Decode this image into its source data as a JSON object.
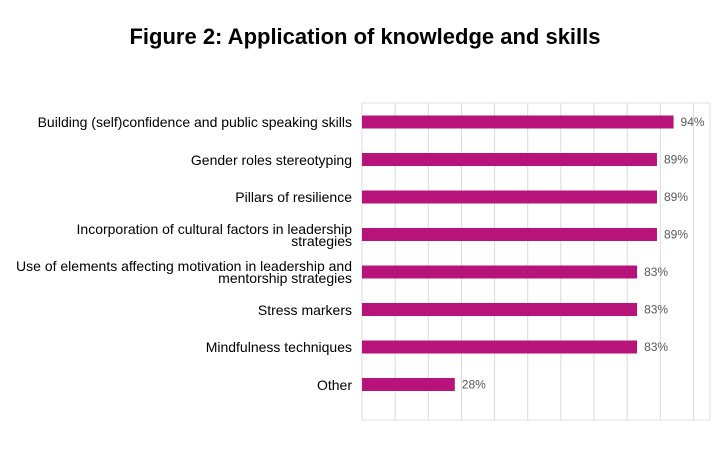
{
  "chart_data": {
    "type": "bar",
    "orientation": "horizontal",
    "title": "Figure 2: Application of knowledge and skills",
    "categories": [
      "Building (self)confidence and public speaking skills",
      "Gender roles stereotyping",
      "Pillars of resilience",
      "Incorporation of cultural factors in leadership strategies",
      "Use of elements affecting motivation in leadership and mentorship strategies",
      "Stress markers",
      "Mindfulness techniques",
      "Other"
    ],
    "values": [
      94,
      89,
      89,
      89,
      83,
      83,
      83,
      28
    ],
    "value_labels": [
      "94%",
      "89%",
      "89%",
      "89%",
      "83%",
      "83%",
      "83%",
      "28%"
    ],
    "color": "#b8137a",
    "xlim": [
      0,
      105
    ],
    "xticks": [
      0,
      10,
      20,
      30,
      40,
      50,
      60,
      70,
      80,
      90,
      100
    ],
    "grid": true
  }
}
